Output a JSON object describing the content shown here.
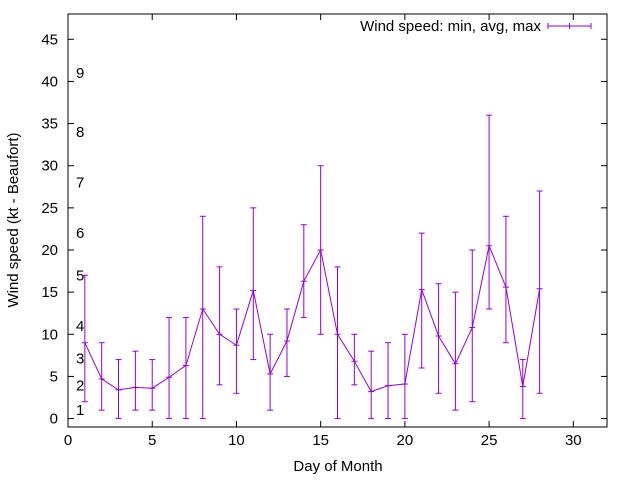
{
  "chart_data": {
    "type": "line",
    "xlabel": "Day of Month",
    "ylabel": "Wind speed (kt - Beaufort)",
    "xlim": [
      0,
      32
    ],
    "ylim": [
      -1,
      48
    ],
    "xticks": [
      0,
      5,
      10,
      15,
      20,
      25,
      30
    ],
    "yticks": [
      0,
      5,
      10,
      15,
      20,
      25,
      30,
      35,
      40,
      45
    ],
    "grid": false,
    "legend_position": "top-right",
    "series": [
      {
        "name": "Wind speed: min, avg, max",
        "color": "#9400d3",
        "style": "yerrorlines",
        "x": [
          1,
          2,
          3,
          4,
          5,
          6,
          7,
          8,
          9,
          10,
          11,
          12,
          13,
          14,
          15,
          16,
          17,
          18,
          19,
          20,
          21,
          22,
          23,
          24,
          25,
          26,
          27,
          28
        ],
        "avg": [
          9,
          4.7,
          3.4,
          3.7,
          3.6,
          4.9,
          6.3,
          13,
          10,
          8.7,
          15.2,
          5.3,
          9.2,
          16.3,
          20,
          10,
          6.8,
          3.2,
          3.9,
          4.1,
          15.3,
          9.8,
          6.5,
          10.8,
          20.5,
          15.6,
          3.8,
          15.4
        ],
        "min": [
          2,
          1,
          0,
          1,
          1,
          0,
          0,
          0,
          4,
          3,
          7,
          1,
          5,
          12,
          10,
          0,
          4,
          0,
          0,
          0,
          6,
          3,
          1,
          2,
          13,
          9,
          0,
          3
        ],
        "max": [
          17,
          9,
          7,
          8,
          7,
          12,
          12,
          24,
          18,
          13,
          25,
          10,
          13,
          23,
          30,
          18,
          10,
          8,
          9,
          10,
          22,
          16,
          15,
          20,
          36,
          24,
          7,
          27
        ]
      }
    ],
    "annotations": [
      {
        "text": "1",
        "y": 1
      },
      {
        "text": "2",
        "y": 3.9
      },
      {
        "text": "3",
        "y": 7.1
      },
      {
        "text": "4",
        "y": 11
      },
      {
        "text": "5",
        "y": 17
      },
      {
        "text": "6",
        "y": 22
      },
      {
        "text": "7",
        "y": 28
      },
      {
        "text": "8",
        "y": 34
      },
      {
        "text": "9",
        "y": 41
      }
    ]
  }
}
